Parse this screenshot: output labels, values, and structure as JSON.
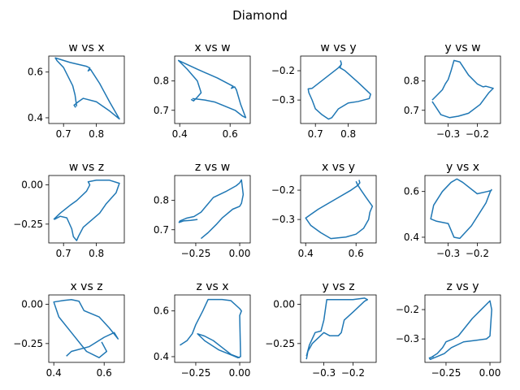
{
  "figure": {
    "suptitle": "Diamond"
  },
  "colors": {
    "line": "#1f77b4",
    "axes": "#000000",
    "background": "#ffffff"
  },
  "chart_data": [
    {
      "type": "line",
      "title": "w vs x",
      "xlabel": "",
      "ylabel": "",
      "xlim": [
        0.655,
        0.885
      ],
      "ylim": [
        0.375,
        0.67
      ],
      "xticks": [
        0.7,
        0.8
      ],
      "xticklabels": [
        "0.7",
        "0.8"
      ],
      "yticks": [
        0.4,
        0.6
      ],
      "yticklabels": [
        "0.4",
        "0.6"
      ],
      "x": [
        0.74,
        0.738,
        0.735,
        0.728,
        0.7,
        0.68,
        0.675,
        0.72,
        0.77,
        0.78,
        0.775,
        0.782,
        0.81,
        0.84,
        0.87,
        0.84,
        0.8,
        0.76,
        0.745,
        0.732,
        0.737
      ],
      "y": [
        0.45,
        0.47,
        0.5,
        0.54,
        0.62,
        0.65,
        0.662,
        0.642,
        0.625,
        0.618,
        0.605,
        0.612,
        0.55,
        0.47,
        0.395,
        0.43,
        0.47,
        0.485,
        0.47,
        0.455,
        0.445
      ]
    },
    {
      "type": "line",
      "title": "x vs w",
      "xlabel": "",
      "ylabel": "",
      "xlim": [
        0.38,
        0.68
      ],
      "ylim": [
        0.655,
        0.885
      ],
      "xticks": [
        0.4,
        0.6
      ],
      "xticklabels": [
        "0.4",
        "0.6"
      ],
      "yticks": [
        0.7,
        0.8
      ],
      "yticklabels": [
        "0.7",
        "0.8"
      ],
      "x": [
        0.45,
        0.47,
        0.5,
        0.54,
        0.62,
        0.65,
        0.662,
        0.642,
        0.625,
        0.618,
        0.605,
        0.612,
        0.55,
        0.47,
        0.395,
        0.43,
        0.47,
        0.485,
        0.47,
        0.455,
        0.445
      ],
      "y": [
        0.74,
        0.738,
        0.735,
        0.728,
        0.7,
        0.68,
        0.675,
        0.72,
        0.77,
        0.78,
        0.775,
        0.782,
        0.81,
        0.84,
        0.87,
        0.84,
        0.8,
        0.76,
        0.745,
        0.732,
        0.737
      ]
    },
    {
      "type": "line",
      "title": "w vs y",
      "xlabel": "",
      "ylabel": "",
      "xlim": [
        0.655,
        0.885
      ],
      "ylim": [
        -0.38,
        -0.15
      ],
      "xticks": [
        0.7,
        0.8
      ],
      "xticklabels": [
        "0.7",
        "0.8"
      ],
      "yticks": [
        -0.3,
        -0.2
      ],
      "yticklabels": [
        "−0.3",
        "−0.2"
      ],
      "x": [
        0.776,
        0.779,
        0.775,
        0.79,
        0.83,
        0.868,
        0.864,
        0.83,
        0.8,
        0.77,
        0.75,
        0.74,
        0.72,
        0.7,
        0.69,
        0.68,
        0.678,
        0.69,
        0.77,
        0.78
      ],
      "y": [
        -0.165,
        -0.175,
        -0.19,
        -0.2,
        -0.24,
        -0.28,
        -0.295,
        -0.305,
        -0.31,
        -0.33,
        -0.36,
        -0.365,
        -0.35,
        -0.33,
        -0.3,
        -0.275,
        -0.262,
        -0.26,
        -0.19,
        -0.178
      ]
    },
    {
      "type": "line",
      "title": "y vs w",
      "xlabel": "",
      "ylabel": "",
      "xlim": [
        -0.38,
        -0.12
      ],
      "ylim": [
        0.655,
        0.885
      ],
      "xticks": [
        -0.3,
        -0.2
      ],
      "xticklabels": [
        "−0.3",
        "−0.2"
      ],
      "yticks": [
        0.7,
        0.8
      ],
      "yticklabels": [
        "0.7",
        "0.8"
      ],
      "x": [
        -0.355,
        -0.34,
        -0.32,
        -0.31,
        -0.3,
        -0.29,
        -0.28,
        -0.26,
        -0.23,
        -0.2,
        -0.18,
        -0.17,
        -0.145,
        -0.16,
        -0.19,
        -0.23,
        -0.265,
        -0.295,
        -0.325,
        -0.355
      ],
      "y": [
        0.735,
        0.75,
        0.77,
        0.79,
        0.805,
        0.835,
        0.87,
        0.865,
        0.82,
        0.79,
        0.78,
        0.782,
        0.775,
        0.76,
        0.72,
        0.69,
        0.68,
        0.675,
        0.685,
        0.73
      ]
    },
    {
      "type": "line",
      "title": "w vs z",
      "xlabel": "",
      "ylabel": "",
      "xlim": [
        0.655,
        0.885
      ],
      "ylim": [
        -0.37,
        0.06
      ],
      "xticks": [
        0.7,
        0.8
      ],
      "xticklabels": [
        "0.7",
        "0.8"
      ],
      "yticks": [
        -0.25,
        0.0
      ],
      "yticklabels": [
        "−0.25",
        "0.00"
      ],
      "x": [
        0.67,
        0.69,
        0.72,
        0.74,
        0.77,
        0.78,
        0.775,
        0.8,
        0.84,
        0.87,
        0.86,
        0.83,
        0.81,
        0.76,
        0.745,
        0.74,
        0.73,
        0.725,
        0.71,
        0.69,
        0.672
      ],
      "y": [
        -0.22,
        -0.18,
        -0.13,
        -0.1,
        -0.04,
        0.0,
        0.02,
        0.03,
        0.03,
        0.01,
        -0.05,
        -0.12,
        -0.18,
        -0.27,
        -0.33,
        -0.355,
        -0.33,
        -0.28,
        -0.21,
        -0.2,
        -0.22
      ]
    },
    {
      "type": "line",
      "title": "z vs w",
      "xlabel": "",
      "ylabel": "",
      "xlim": [
        -0.37,
        0.06
      ],
      "ylim": [
        0.655,
        0.885
      ],
      "xticks": [
        -0.25,
        0.0
      ],
      "xticklabels": [
        "−0.25",
        "0.00"
      ],
      "yticks": [
        0.7,
        0.8
      ],
      "yticklabels": [
        "0.7",
        "0.8"
      ],
      "x": [
        -0.22,
        -0.18,
        -0.13,
        -0.1,
        -0.04,
        0.0,
        0.01,
        0.02,
        0.01,
        0.0,
        -0.02,
        -0.08,
        -0.15,
        -0.22,
        -0.26,
        -0.3,
        -0.34,
        -0.345,
        -0.32,
        -0.28,
        -0.24
      ],
      "y": [
        0.67,
        0.69,
        0.72,
        0.74,
        0.77,
        0.78,
        0.79,
        0.82,
        0.87,
        0.86,
        0.85,
        0.83,
        0.81,
        0.76,
        0.745,
        0.74,
        0.73,
        0.725,
        0.73,
        0.732,
        0.735
      ]
    },
    {
      "type": "line",
      "title": "x vs y",
      "xlabel": "",
      "ylabel": "",
      "xlim": [
        0.38,
        0.68
      ],
      "ylim": [
        -0.38,
        -0.15
      ],
      "xticks": [
        0.4,
        0.6
      ],
      "xticklabels": [
        "0.4",
        "0.6"
      ],
      "yticks": [
        -0.3,
        -0.2
      ],
      "yticklabels": [
        "−0.3",
        "−0.2"
      ],
      "x": [
        0.612,
        0.615,
        0.605,
        0.58,
        0.52,
        0.45,
        0.4,
        0.42,
        0.46,
        0.5,
        0.56,
        0.6,
        0.63,
        0.65,
        0.655,
        0.665,
        0.64,
        0.62,
        0.605,
        0.6
      ],
      "y": [
        -0.165,
        -0.175,
        -0.185,
        -0.2,
        -0.23,
        -0.265,
        -0.295,
        -0.32,
        -0.345,
        -0.365,
        -0.36,
        -0.35,
        -0.33,
        -0.3,
        -0.275,
        -0.255,
        -0.225,
        -0.2,
        -0.18,
        -0.17
      ]
    },
    {
      "type": "line",
      "title": "y vs x",
      "xlabel": "",
      "ylabel": "",
      "xlim": [
        -0.38,
        -0.12
      ],
      "ylim": [
        0.375,
        0.67
      ],
      "xticks": [
        -0.3,
        -0.2
      ],
      "xticklabels": [
        "−0.3",
        "−0.2"
      ],
      "yticks": [
        0.4,
        0.6
      ],
      "yticklabels": [
        "0.4",
        "0.6"
      ],
      "x": [
        -0.15,
        -0.165,
        -0.2,
        -0.25,
        -0.27,
        -0.29,
        -0.32,
        -0.35,
        -0.36,
        -0.34,
        -0.3,
        -0.28,
        -0.26,
        -0.22,
        -0.17,
        -0.155,
        -0.15
      ],
      "y": [
        0.605,
        0.6,
        0.59,
        0.64,
        0.655,
        0.64,
        0.6,
        0.54,
        0.48,
        0.47,
        0.46,
        0.4,
        0.395,
        0.45,
        0.55,
        0.6,
        0.61
      ]
    },
    {
      "type": "line",
      "title": "x vs z",
      "xlabel": "",
      "ylabel": "",
      "xlim": [
        0.38,
        0.68
      ],
      "ylim": [
        -0.37,
        0.06
      ],
      "xticks": [
        0.4,
        0.6
      ],
      "xticklabels": [
        "0.4",
        "0.6"
      ],
      "yticks": [
        -0.25,
        0.0
      ],
      "yticklabels": [
        "−0.25",
        "0.00"
      ],
      "x": [
        0.45,
        0.47,
        0.54,
        0.56,
        0.6,
        0.64,
        0.655,
        0.62,
        0.58,
        0.52,
        0.5,
        0.47,
        0.44,
        0.4,
        0.42,
        0.47,
        0.53,
        0.58,
        0.61,
        0.6,
        0.59
      ],
      "y": [
        -0.33,
        -0.3,
        -0.27,
        -0.25,
        -0.21,
        -0.18,
        -0.22,
        -0.15,
        -0.08,
        -0.04,
        0.02,
        0.03,
        0.025,
        0.015,
        -0.08,
        -0.18,
        -0.3,
        -0.34,
        -0.3,
        -0.27,
        -0.24
      ]
    },
    {
      "type": "line",
      "title": "z vs x",
      "xlabel": "",
      "ylabel": "",
      "xlim": [
        -0.37,
        0.06
      ],
      "ylim": [
        0.375,
        0.67
      ],
      "xticks": [
        -0.25,
        0.0
      ],
      "xticklabels": [
        "−0.25",
        "0.00"
      ],
      "yticks": [
        0.4,
        0.6
      ],
      "yticklabels": [
        "0.4",
        "0.6"
      ],
      "x": [
        -0.34,
        -0.3,
        -0.27,
        -0.25,
        -0.21,
        -0.18,
        -0.1,
        -0.05,
        0.0,
        0.01,
        0.0,
        0.005,
        -0.01,
        -0.04,
        -0.12,
        -0.2,
        -0.24,
        -0.2,
        -0.15,
        -0.1,
        -0.05,
        0.0
      ],
      "y": [
        0.45,
        0.47,
        0.5,
        0.54,
        0.6,
        0.65,
        0.65,
        0.645,
        0.61,
        0.6,
        0.58,
        0.4,
        0.395,
        0.405,
        0.43,
        0.47,
        0.5,
        0.49,
        0.47,
        0.44,
        0.41,
        0.395
      ]
    },
    {
      "type": "line",
      "title": "y vs z",
      "xlabel": "",
      "ylabel": "",
      "xlim": [
        -0.38,
        -0.12
      ],
      "ylim": [
        -0.37,
        0.06
      ],
      "xticks": [
        -0.3,
        -0.2
      ],
      "xticklabels": [
        "−0.3",
        "−0.2"
      ],
      "yticks": [
        -0.25,
        0.0
      ],
      "yticklabels": [
        "−0.25",
        "0.00"
      ],
      "x": [
        -0.36,
        -0.355,
        -0.34,
        -0.3,
        -0.28,
        -0.25,
        -0.24,
        -0.23,
        -0.2,
        -0.16,
        -0.15,
        -0.16,
        -0.2,
        -0.25,
        -0.29,
        -0.3,
        -0.31,
        -0.33,
        -0.35,
        -0.36
      ],
      "y": [
        -0.35,
        -0.3,
        -0.25,
        -0.18,
        -0.2,
        -0.2,
        -0.18,
        -0.1,
        -0.05,
        0.02,
        0.03,
        0.04,
        0.03,
        0.03,
        0.03,
        -0.1,
        -0.17,
        -0.18,
        -0.26,
        -0.33
      ]
    },
    {
      "type": "line",
      "title": "z vs y",
      "xlabel": "",
      "ylabel": "",
      "xlim": [
        -0.37,
        0.06
      ],
      "ylim": [
        -0.38,
        -0.15
      ],
      "xticks": [
        -0.25,
        0.0
      ],
      "xticklabels": [
        "−0.25",
        "0.00"
      ],
      "yticks": [
        -0.3,
        -0.2
      ],
      "yticklabels": [
        "−0.3",
        "−0.2"
      ],
      "x": [
        -0.34,
        -0.3,
        -0.27,
        -0.25,
        -0.21,
        -0.18,
        -0.1,
        -0.05,
        0.0,
        0.01,
        0.0,
        -0.02,
        -0.08,
        -0.15,
        -0.22,
        -0.26,
        -0.3,
        -0.34,
        -0.345,
        -0.32
      ],
      "y": [
        -0.365,
        -0.35,
        -0.33,
        -0.31,
        -0.3,
        -0.29,
        -0.23,
        -0.2,
        -0.17,
        -0.2,
        -0.29,
        -0.3,
        -0.305,
        -0.31,
        -0.33,
        -0.35,
        -0.36,
        -0.37,
        -0.365,
        -0.36
      ]
    }
  ]
}
